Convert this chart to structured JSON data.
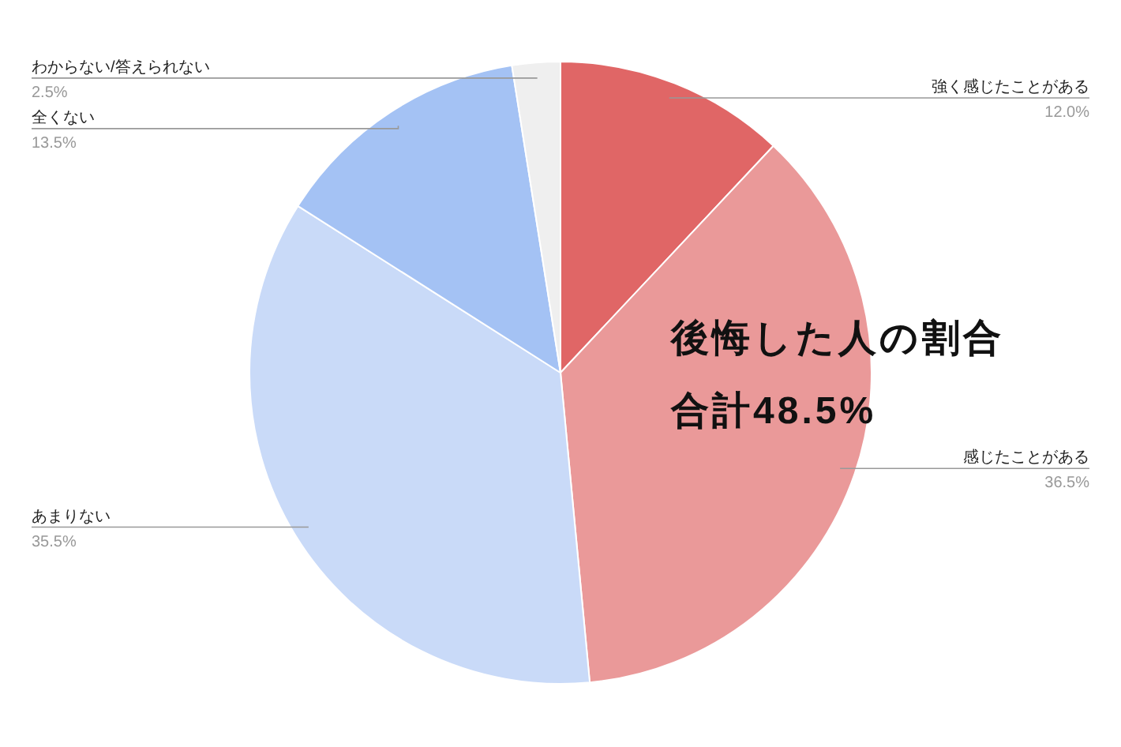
{
  "chart_data": {
    "type": "pie",
    "categories": [
      "強く感じたことがある",
      "感じたことがある",
      "あまりない",
      "全くない",
      "わからない/答えられない"
    ],
    "values": [
      12.0,
      36.5,
      35.5,
      13.5,
      2.5
    ],
    "value_labels": [
      "12.0%",
      "36.5%",
      "35.5%",
      "13.5%",
      "2.5%"
    ],
    "colors": [
      "#e06666",
      "#ea9999",
      "#c9daf8",
      "#a4c2f4",
      "#efefef"
    ],
    "annotations": [
      "後悔した人の割合",
      "合計48.5%"
    ]
  }
}
